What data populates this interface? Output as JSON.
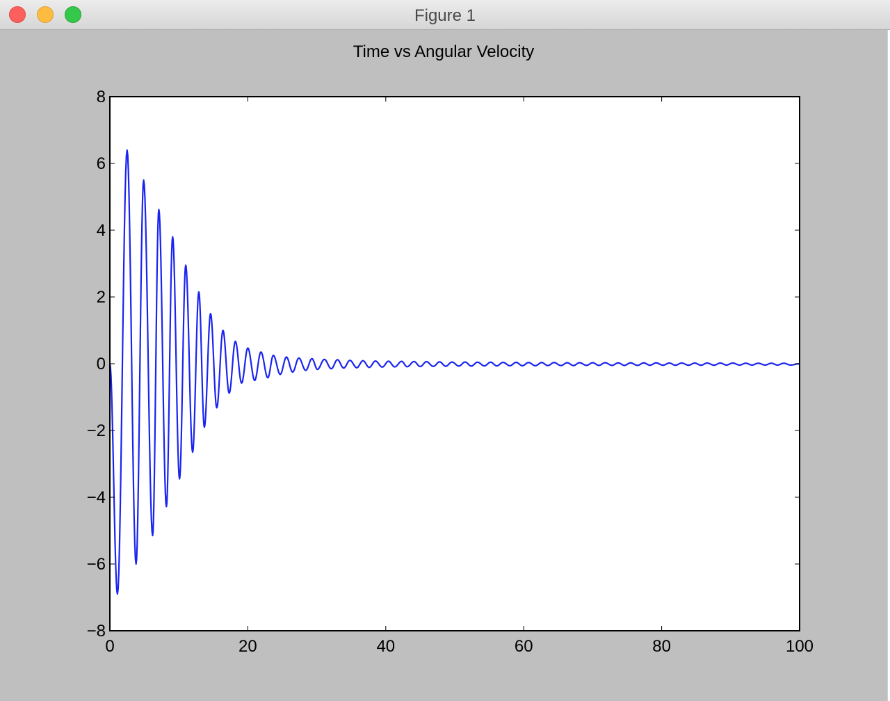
{
  "window": {
    "title": "Figure 1"
  },
  "colors": {
    "line": "#1a24f0",
    "figure_background": "#bfbfbf",
    "axes_background": "#ffffff"
  },
  "chart_data": {
    "type": "line",
    "title": "Time vs Angular Velocity",
    "xlabel": "",
    "ylabel": "",
    "xlim": [
      0,
      100
    ],
    "ylim": [
      -8,
      8
    ],
    "xticks": [
      0,
      20,
      40,
      60,
      80,
      100
    ],
    "xtick_labels": [
      "0",
      "20",
      "40",
      "60",
      "80",
      "100"
    ],
    "yticks": [
      8,
      6,
      4,
      2,
      0,
      -2,
      -4,
      -6,
      -8
    ],
    "ytick_labels": [
      "8",
      "6",
      "4",
      "2",
      "0",
      "−2",
      "−4",
      "−6",
      "−8"
    ],
    "grid": false,
    "series": [
      {
        "x": [
          0,
          1.1,
          2.5,
          3.8,
          4.9,
          6.2,
          7.1,
          8.2,
          9.1,
          10.1,
          11.0,
          12.0,
          12.9,
          13.7,
          14.6,
          15.5,
          16.4,
          17.3,
          18.2,
          19.1,
          20.0,
          21.0,
          21.9,
          22.9,
          23.7,
          24.7,
          25.6,
          26.5,
          27.4,
          28.4,
          29.3,
          30.1,
          31.1,
          32.1,
          33.0,
          33.9,
          34.8,
          35.8,
          36.7,
          37.6,
          38.5,
          39.5,
          40.4,
          41.3,
          42.3,
          43.1,
          44.1,
          45.0,
          45.9,
          46.9,
          47.8,
          48.7,
          49.6,
          50.6,
          51.5,
          52.4,
          53.3,
          54.3,
          55.2,
          56.1,
          57.0,
          58.0,
          58.9,
          59.8,
          60.7,
          61.7,
          62.6,
          63.5,
          64.4,
          65.4,
          66.3,
          67.2,
          68.1,
          69.1,
          70.0,
          70.9,
          71.8,
          72.8,
          73.7,
          74.6,
          75.5,
          76.5,
          77.4,
          78.3,
          79.2,
          80.2,
          81.1,
          82.0,
          82.9,
          83.9,
          84.8,
          85.7,
          86.6,
          87.6,
          88.5,
          89.4,
          90.3,
          91.3,
          92.2,
          93.1,
          94.0,
          95.0,
          95.9,
          96.8,
          97.7,
          98.7,
          100
        ],
        "y": [
          0,
          -6.9,
          6.4,
          -6.0,
          5.5,
          -5.15,
          4.62,
          -4.28,
          3.8,
          -3.45,
          2.95,
          -2.65,
          2.15,
          -1.9,
          1.5,
          -1.32,
          1.0,
          -0.88,
          0.67,
          -0.58,
          0.47,
          -0.5,
          0.35,
          -0.42,
          0.25,
          -0.32,
          0.2,
          -0.25,
          0.17,
          -0.2,
          0.15,
          -0.17,
          0.13,
          -0.15,
          0.12,
          -0.13,
          0.1,
          -0.12,
          0.09,
          -0.11,
          0.08,
          -0.1,
          0.075,
          -0.095,
          0.07,
          -0.09,
          0.065,
          -0.085,
          0.06,
          -0.08,
          0.055,
          -0.075,
          0.05,
          -0.07,
          0.05,
          -0.07,
          0.045,
          -0.065,
          0.045,
          -0.065,
          0.04,
          -0.06,
          0.04,
          -0.06,
          0.035,
          -0.06,
          0.035,
          -0.055,
          0.035,
          -0.055,
          0.03,
          -0.055,
          0.03,
          -0.05,
          0.03,
          -0.05,
          0.03,
          -0.05,
          0.025,
          -0.05,
          0.025,
          -0.05,
          0.025,
          -0.045,
          0.025,
          -0.045,
          0.02,
          -0.045,
          0.02,
          -0.045,
          0.02,
          -0.045,
          0.02,
          -0.045,
          0.02,
          -0.04,
          0.02,
          -0.04,
          0.015,
          -0.04,
          0.015,
          -0.04,
          0.015,
          -0.04,
          0.015,
          -0.04,
          0
        ]
      }
    ]
  }
}
